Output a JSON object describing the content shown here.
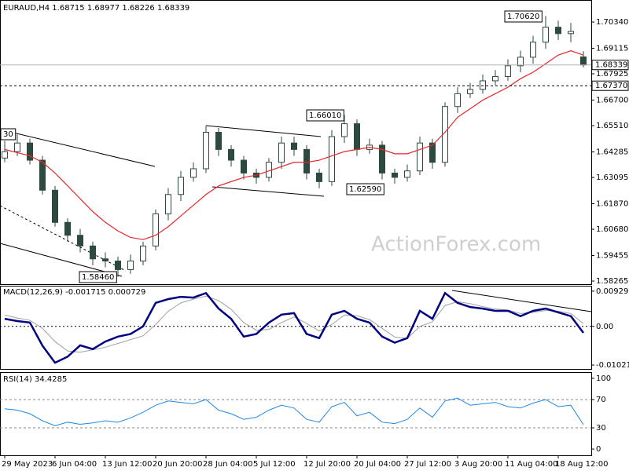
{
  "chart_data": [
    {
      "type": "candlestick",
      "title": "EURAUD,H4",
      "watermark": "ActionForex.com",
      "categories": [
        "29 May 2023",
        null,
        null,
        null,
        "6 Jun 04:00",
        null,
        null,
        null,
        "13 Jun 12:00",
        null,
        null,
        null,
        "20 Jun 20:00",
        null,
        null,
        null,
        "28 Jun 04:00",
        null,
        null,
        null,
        "5 Jul 12:00",
        null,
        null,
        null,
        "12 Jul 20:00",
        null,
        null,
        null,
        "20 Jul 04:00",
        null,
        null,
        null,
        "27 Jul 12:00",
        null,
        null,
        null,
        "3 Aug 20:00",
        null,
        null,
        null,
        "11 Aug 04:00",
        null,
        null,
        null,
        "18 Aug 12:00",
        null,
        null
      ],
      "open": [
        1.64,
        1.643,
        1.647,
        1.639,
        1.625,
        1.61,
        1.604,
        1.599,
        1.593,
        1.592,
        1.588,
        1.592,
        1.599,
        1.614,
        1.623,
        1.631,
        1.635,
        1.652,
        1.644,
        1.639,
        1.633,
        1.631,
        1.638,
        1.647,
        1.644,
        1.633,
        1.629,
        1.65,
        1.656,
        1.644,
        1.646,
        1.633,
        1.631,
        1.634,
        1.647,
        1.638,
        1.664,
        1.67,
        1.672,
        1.676,
        1.678,
        1.683,
        1.687,
        1.694,
        1.701,
        1.698,
        1.68715
      ],
      "high": [
        1.648,
        1.651,
        1.649,
        1.641,
        1.627,
        1.612,
        1.607,
        1.601,
        1.596,
        1.594,
        1.595,
        1.601,
        1.616,
        1.626,
        1.634,
        1.638,
        1.655,
        1.654,
        1.646,
        1.641,
        1.635,
        1.64,
        1.65,
        1.65,
        1.646,
        1.635,
        1.653,
        1.6601,
        1.658,
        1.649,
        1.648,
        1.635,
        1.637,
        1.65,
        1.649,
        1.666,
        1.673,
        1.675,
        1.679,
        1.681,
        1.686,
        1.69,
        1.697,
        1.7062,
        1.704,
        1.703,
        1.68977
      ],
      "low": [
        1.638,
        1.641,
        1.637,
        1.623,
        1.608,
        1.601,
        1.596,
        1.59,
        1.589,
        1.5846,
        1.586,
        1.59,
        1.597,
        1.611,
        1.62,
        1.629,
        1.633,
        1.641,
        1.636,
        1.63,
        1.628,
        1.629,
        1.635,
        1.641,
        1.63,
        1.6259,
        1.627,
        1.647,
        1.641,
        1.642,
        1.63,
        1.628,
        1.629,
        1.632,
        1.635,
        1.636,
        1.661,
        1.668,
        1.67,
        1.674,
        1.676,
        1.68,
        1.684,
        1.691,
        1.695,
        1.694,
        1.68226
      ],
      "close": [
        1.643,
        1.647,
        1.639,
        1.625,
        1.61,
        1.604,
        1.599,
        1.593,
        1.592,
        1.588,
        1.592,
        1.599,
        1.614,
        1.623,
        1.631,
        1.635,
        1.652,
        1.644,
        1.639,
        1.633,
        1.631,
        1.638,
        1.647,
        1.644,
        1.633,
        1.629,
        1.65,
        1.656,
        1.644,
        1.646,
        1.633,
        1.631,
        1.634,
        1.647,
        1.638,
        1.664,
        1.67,
        1.672,
        1.676,
        1.678,
        1.683,
        1.687,
        1.694,
        1.701,
        1.698,
        1.699,
        1.68339
      ],
      "up_color": "#ffffff",
      "down_color": "#2e4a3e",
      "wick_color": "#2e4a3e",
      "ma": {
        "color": "#e8262b",
        "values": [
          1.644,
          1.6425,
          1.641,
          1.638,
          1.633,
          1.627,
          1.621,
          1.615,
          1.61,
          1.606,
          1.603,
          1.602,
          1.604,
          1.608,
          1.613,
          1.618,
          1.623,
          1.627,
          1.629,
          1.631,
          1.632,
          1.634,
          1.636,
          1.638,
          1.638,
          1.639,
          1.641,
          1.643,
          1.644,
          1.645,
          1.644,
          1.642,
          1.642,
          1.644,
          1.646,
          1.652,
          1.659,
          1.663,
          1.667,
          1.67,
          1.673,
          1.677,
          1.68,
          1.684,
          1.688,
          1.69,
          1.688
        ]
      },
      "ylim": [
        1.5812,
        1.7133
      ],
      "yticks": [
        {
          "value": 1.7034,
          "label": "1.70340"
        },
        1.69115,
        1.67925,
        {
          "value": 1.667,
          "label": "1.66700"
        },
        {
          "value": 1.6551,
          "label": "1.65510"
        },
        1.64285,
        1.63095,
        {
          "value": 1.6187,
          "label": "1.61870"
        },
        {
          "value": 1.6068,
          "label": "1.60680"
        },
        1.59455,
        1.58265
      ],
      "last_price": 1.68339,
      "level": {
        "value": 1.6737,
        "label": "1.67370"
      },
      "annotations": [
        "1.70620",
        "1.66010",
        "1.62590",
        "1.58460",
        "30"
      ]
    },
    {
      "type": "macd",
      "title": "MACD(12,26,9)",
      "series": [
        {
          "name": "MACD",
          "color": "#000080",
          "values": [
            0.002,
            0.0014,
            0.001,
            -0.0051,
            -0.0096,
            -0.008,
            -0.005,
            -0.006,
            -0.004,
            -0.0027,
            -0.002,
            0.0,
            0.0062,
            0.0072,
            0.0078,
            0.0076,
            0.0088,
            0.0047,
            0.002,
            -0.0027,
            -0.002,
            0.001,
            0.0031,
            0.0035,
            -0.002,
            -0.0031,
            0.0031,
            0.0041,
            0.002,
            0.001,
            -0.0027,
            -0.0043,
            -0.0031,
            0.0041,
            0.002,
            0.0088,
            0.0062,
            0.0051,
            0.0047,
            0.0041,
            0.0041,
            0.0027,
            0.0041,
            0.0047,
            0.0037,
            0.0027,
            -0.001715
          ]
        },
        {
          "name": "Signal",
          "color": "#a0a0a0",
          "values": [
            0.003,
            0.0022,
            0.0016,
            -0.0005,
            -0.004,
            -0.0065,
            -0.0068,
            -0.0062,
            -0.0055,
            -0.0045,
            -0.0035,
            -0.0025,
            0.0005,
            0.004,
            0.0062,
            0.0072,
            0.008,
            0.0068,
            0.0045,
            0.001,
            -0.001,
            -0.0008,
            0.001,
            0.0025,
            0.0008,
            -0.0012,
            0.0005,
            0.003,
            0.0028,
            0.0018,
            -0.0005,
            -0.0028,
            -0.0032,
            0.0,
            0.0012,
            0.0055,
            0.0065,
            0.006,
            0.0052,
            0.0046,
            0.0043,
            0.0034,
            0.0037,
            0.0042,
            0.004,
            0.0034,
            0.000729
          ]
        }
      ],
      "ylim": [
        -0.01124,
        0.01052
      ],
      "yticks": [
        0.009291,
        {
          "value": 0,
          "label": "0.00"
        },
        -0.010211
      ],
      "zero_line": true
    },
    {
      "type": "rsi",
      "title": "RSI(14)",
      "color": "#1e88e5",
      "values": [
        57,
        55,
        50,
        40,
        33,
        38,
        35,
        37,
        40,
        38,
        44,
        52,
        62,
        68,
        66,
        64,
        70,
        55,
        50,
        42,
        45,
        55,
        62,
        58,
        42,
        38,
        60,
        66,
        47,
        52,
        38,
        36,
        42,
        58,
        45,
        68,
        72,
        62,
        64,
        66,
        60,
        58,
        65,
        70,
        60,
        62,
        34.4285
      ],
      "ylim": [
        -8.8,
        107.7
      ],
      "yticks": [
        100,
        70,
        30,
        0
      ],
      "levels": [
        70,
        30
      ]
    }
  ]
}
